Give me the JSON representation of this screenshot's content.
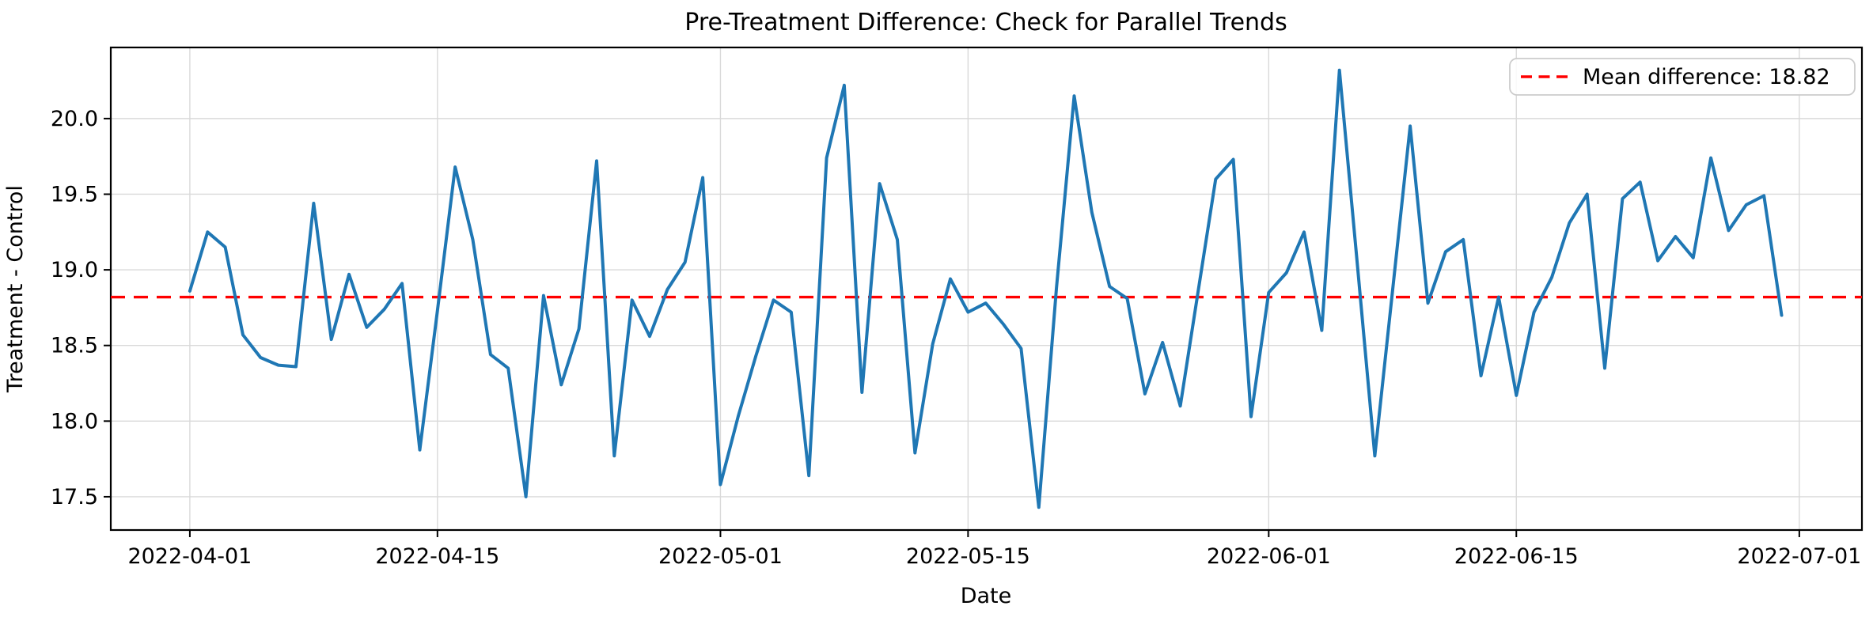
{
  "title": "Pre-Treatment Difference: Check for Parallel Trends",
  "axis": {
    "xlabel": "Date",
    "ylabel": "Treatment - Control"
  },
  "legend": {
    "label": "Mean difference: 18.82"
  },
  "colors": {
    "series_line": "#1f77b4",
    "mean_line": "#ff0000",
    "grid": "#d9d9d9",
    "spine": "#000000",
    "legend_border": "#cccccc",
    "text": "#000000"
  },
  "chart_data": {
    "type": "line",
    "title": "Pre-Treatment Difference: Check for Parallel Trends",
    "xlabel": "Date",
    "ylabel": "Treatment - Control",
    "x_start_date": "2022-04-01",
    "x_unit": "days since 2022-04-01, one point per day",
    "values": [
      18.86,
      19.25,
      19.15,
      18.57,
      18.42,
      18.37,
      18.36,
      19.44,
      18.54,
      18.97,
      18.62,
      18.74,
      18.91,
      17.81,
      18.73,
      19.68,
      19.2,
      18.44,
      18.35,
      17.5,
      18.83,
      18.24,
      18.61,
      19.72,
      17.77,
      18.8,
      18.56,
      18.87,
      19.05,
      19.61,
      17.58,
      18.03,
      18.43,
      18.8,
      18.72,
      17.64,
      19.74,
      20.22,
      18.19,
      19.57,
      19.2,
      17.79,
      18.51,
      18.94,
      18.72,
      18.78,
      18.64,
      18.48,
      17.43,
      18.88,
      20.15,
      19.38,
      18.89,
      18.81,
      18.18,
      18.52,
      18.1,
      18.85,
      19.6,
      19.73,
      18.03,
      18.85,
      18.98,
      19.25,
      18.6,
      20.32,
      19.05,
      17.77,
      18.86,
      19.95,
      18.78,
      19.12,
      19.2,
      18.3,
      18.82,
      18.17,
      18.72,
      18.95,
      19.31,
      19.5,
      18.35,
      19.47,
      19.58,
      19.06,
      19.22,
      19.08,
      19.74,
      19.26,
      19.43,
      19.49,
      18.7
    ],
    "mean_line": {
      "value": 18.82,
      "style": "dashed",
      "color": "#ff0000"
    },
    "legend": {
      "label": "Mean difference: 18.82",
      "position": "upper right"
    },
    "x_ticks": {
      "days": [
        0,
        14,
        30,
        44,
        61,
        75,
        91
      ],
      "labels": [
        "2022-04-01",
        "2022-04-15",
        "2022-05-01",
        "2022-05-15",
        "2022-06-01",
        "2022-06-15",
        "2022-07-01"
      ]
    },
    "y_ticks": {
      "values": [
        17.5,
        18.0,
        18.5,
        19.0,
        19.5,
        20.0
      ],
      "labels": [
        "17.5",
        "18.0",
        "18.5",
        "19.0",
        "19.5",
        "20.0"
      ]
    },
    "xlim_days": [
      -4.47,
      94.54
    ],
    "ylim": [
      17.28,
      20.47
    ],
    "grid": true,
    "line_color": "#1f77b4"
  }
}
